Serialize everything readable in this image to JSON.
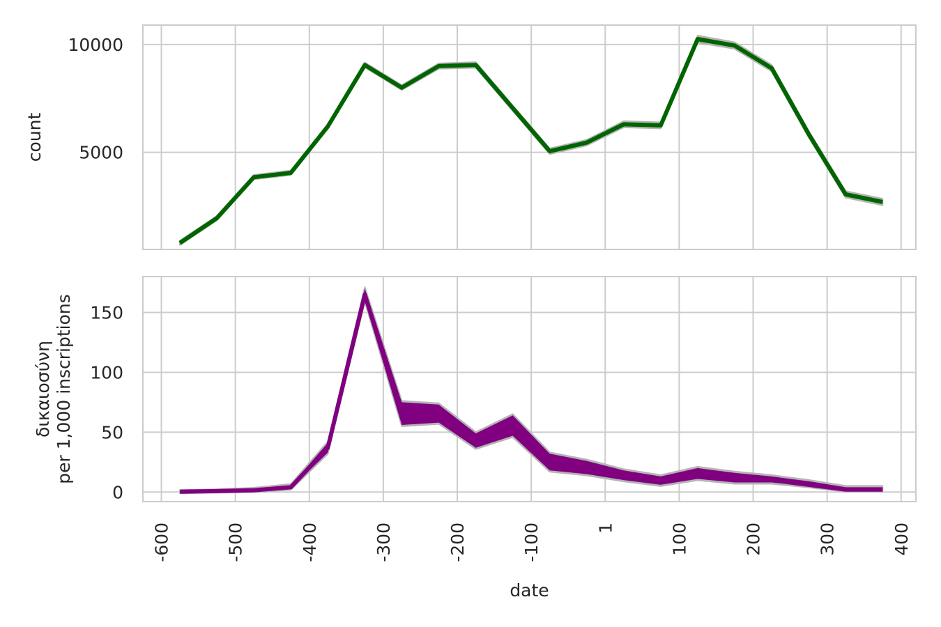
{
  "chart_data": [
    {
      "type": "line",
      "ylabel": "count",
      "xlabel": "",
      "xlim": [
        -625,
        420
      ],
      "ylim": [
        500,
        10900
      ],
      "yticks": [
        5000,
        10000
      ],
      "ytick_labels": [
        "5000",
        "10000"
      ],
      "grid": true,
      "series": [
        {
          "color": "#006400",
          "x": [
            -575,
            -525,
            -475,
            -425,
            -375,
            -325,
            -275,
            -225,
            -175,
            -125,
            -75,
            -25,
            25,
            75,
            125,
            175,
            225,
            275,
            325,
            375
          ],
          "y": [
            800,
            1950,
            3850,
            4050,
            6200,
            9050,
            8000,
            9000,
            9050,
            7050,
            5050,
            5450,
            6300,
            6250,
            10250,
            9950,
            8900,
            5850,
            3050,
            2700
          ],
          "band_halfwidth": [
            40,
            40,
            40,
            40,
            40,
            50,
            50,
            60,
            70,
            60,
            70,
            70,
            80,
            80,
            100,
            90,
            90,
            90,
            90,
            90
          ]
        }
      ]
    },
    {
      "type": "line",
      "ylabel": "δικαιοσύνη\nper 1,000 inscriptions",
      "ylabel_lines": [
        "δικαιοσύνη",
        "per 1,000 inscriptions"
      ],
      "xlabel": "date",
      "xlim": [
        -625,
        420
      ],
      "ylim": [
        -8,
        180
      ],
      "yticks": [
        0,
        50,
        100,
        150
      ],
      "ytick_labels": [
        "0",
        "50",
        "100",
        "150"
      ],
      "xticks": [
        -600,
        -500,
        -400,
        -300,
        -200,
        -100,
        0,
        100,
        200,
        300,
        400
      ],
      "xtick_labels": [
        "-600",
        "-500",
        "-400",
        "-300",
        "-200",
        "-100",
        "1",
        "100",
        "200",
        "300",
        "400"
      ],
      "grid": true,
      "series": [
        {
          "color": "#800080",
          "x": [
            -575,
            -525,
            -475,
            -425,
            -375,
            -325,
            -275,
            -225,
            -175,
            -125,
            -75,
            -25,
            25,
            75,
            125,
            175,
            225,
            275,
            325,
            375
          ],
          "y": [
            0.3,
            0.8,
            1.5,
            4,
            37,
            165,
            64,
            65,
            43,
            54,
            23,
            19,
            13,
            8,
            15,
            11,
            10,
            6,
            2,
            2
          ],
          "lower": [
            0.1,
            0.5,
            1,
            3,
            33,
            160,
            56,
            58,
            37,
            47,
            18,
            15,
            10,
            6,
            11,
            8,
            8,
            5,
            1.5,
            1.5
          ],
          "upper": [
            0.6,
            1.2,
            2.5,
            5.5,
            41,
            170,
            75,
            73,
            49,
            64,
            32,
            26,
            18,
            13,
            20,
            16,
            13,
            9,
            4,
            4
          ]
        }
      ]
    }
  ]
}
